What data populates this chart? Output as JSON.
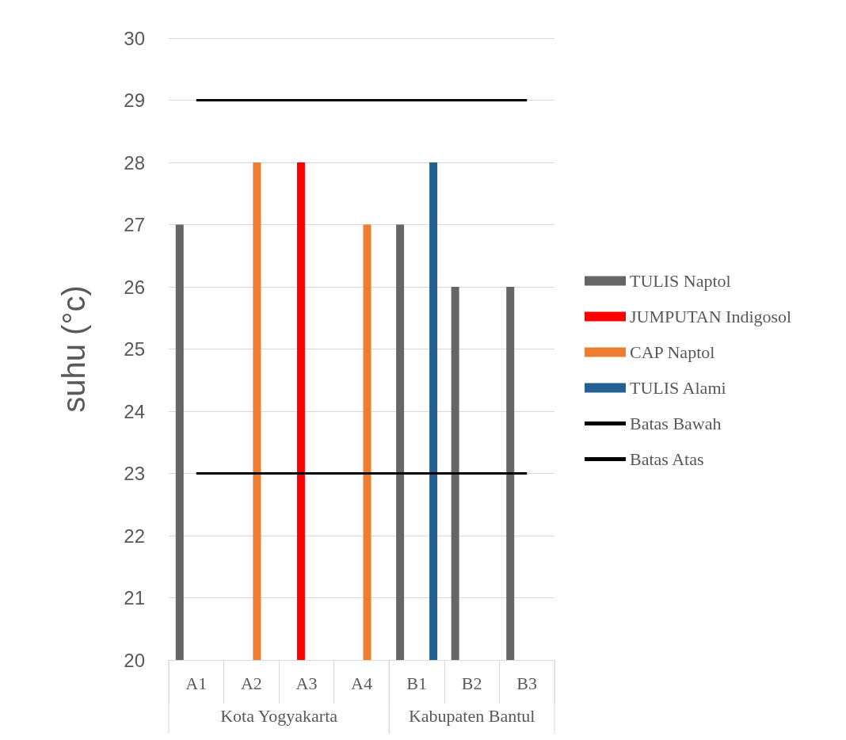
{
  "chart_data": {
    "type": "bar",
    "ylabel": "suhu (°c)",
    "categories": [
      "A1",
      "A2",
      "A3",
      "A4",
      "B1",
      "B2",
      "B3"
    ],
    "series": [
      {
        "name": "TULIS Naptol",
        "color": "#666666",
        "values": [
          27,
          null,
          null,
          null,
          27,
          26,
          26
        ]
      },
      {
        "name": "JUMPUTAN Indigosol",
        "color": "#ff0000",
        "values": [
          null,
          null,
          28,
          null,
          null,
          null,
          null
        ]
      },
      {
        "name": "CAP Naptol",
        "color": "#ed7d31",
        "values": [
          null,
          28,
          null,
          27,
          null,
          null,
          null
        ]
      },
      {
        "name": "TULIS Alami",
        "color": "#255e91",
        "values": [
          null,
          null,
          null,
          null,
          28,
          null,
          null
        ]
      },
      {
        "name": "Batas Bawah",
        "type": "line",
        "color": "#000000",
        "values": [
          23,
          23,
          23,
          23,
          23,
          23,
          23
        ]
      },
      {
        "name": "Batas Atas",
        "type": "line",
        "color": "#000000",
        "values": [
          29,
          29,
          29,
          29,
          29,
          29,
          29
        ]
      }
    ],
    "ylim": [
      20,
      30
    ],
    "yticks": [
      20,
      21,
      22,
      23,
      24,
      25,
      26,
      27,
      28,
      29,
      30
    ],
    "grid": "y",
    "legend": "right",
    "marker": "none",
    "annotations": [
      "Kota Yogyakarta",
      "Kabupaten Bantul"
    ]
  }
}
